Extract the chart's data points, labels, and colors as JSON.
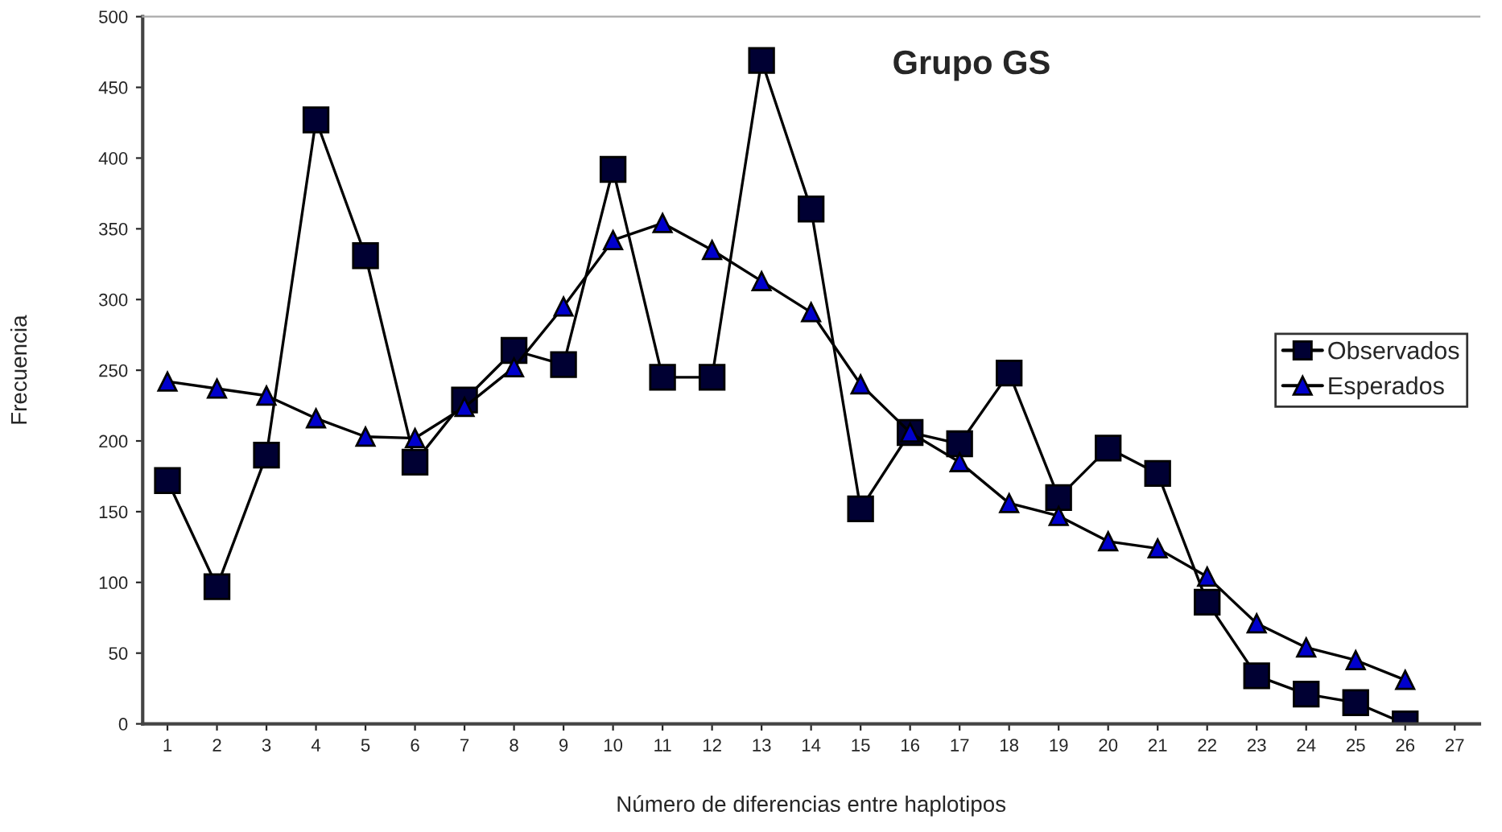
{
  "chart_data": {
    "type": "line",
    "title": "Grupo GS",
    "xlabel": "Número de diferencias entre haplotipos",
    "ylabel": "Frecuencia",
    "categories": [
      "1",
      "2",
      "3",
      "4",
      "5",
      "6",
      "7",
      "8",
      "9",
      "10",
      "11",
      "12",
      "13",
      "14",
      "15",
      "16",
      "17",
      "18",
      "19",
      "20",
      "21",
      "22",
      "23",
      "24",
      "25",
      "26",
      "27"
    ],
    "series": [
      {
        "name": "Observados",
        "color": "#000033",
        "marker": "square",
        "values": [
          172,
          97,
          190,
          427,
          331,
          185,
          229,
          264,
          254,
          392,
          245,
          245,
          469,
          364,
          152,
          206,
          198,
          248,
          160,
          195,
          177,
          86,
          34,
          21,
          15,
          0,
          null
        ]
      },
      {
        "name": "Esperados",
        "color": "#0000cc",
        "marker": "triangle",
        "values": [
          242,
          237,
          232,
          216,
          203,
          202,
          224,
          252,
          295,
          342,
          354,
          335,
          313,
          291,
          240,
          206,
          185,
          156,
          147,
          129,
          124,
          104,
          71,
          54,
          45,
          31,
          null
        ]
      }
    ],
    "ylim": [
      0,
      500
    ],
    "yticks": [
      0,
      50,
      100,
      150,
      200,
      250,
      300,
      350,
      400,
      450,
      500
    ],
    "grid": false,
    "legend": "right",
    "line_style": "solid"
  }
}
